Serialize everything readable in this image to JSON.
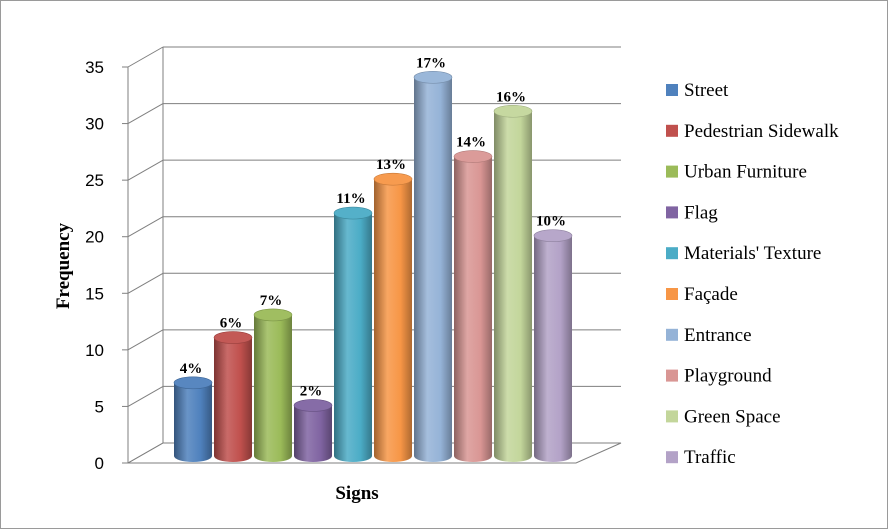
{
  "chart_data": {
    "type": "bar",
    "xlabel": "Signs",
    "ylabel": "Frequency",
    "ylim": [
      0,
      35
    ],
    "yticks": [
      0,
      5,
      10,
      15,
      20,
      25,
      30,
      35
    ],
    "grid": true,
    "legend_position": "right",
    "series": [
      {
        "name": "Street",
        "value": 7,
        "label": "4%",
        "color": "#4F81BD"
      },
      {
        "name": "Pedestrian Sidewalk",
        "value": 11,
        "label": "6%",
        "color": "#C0504D"
      },
      {
        "name": "Urban Furniture",
        "value": 13,
        "label": "7%",
        "color": "#9BBB59"
      },
      {
        "name": "Flag",
        "value": 5,
        "label": "2%",
        "color": "#8064A2"
      },
      {
        "name": "Materials' Texture",
        "value": 22,
        "label": "11%",
        "color": "#4BACC6"
      },
      {
        "name": "Façade",
        "value": 25,
        "label": "13%",
        "color": "#F79646"
      },
      {
        "name": "Entrance",
        "value": 34,
        "label": "17%",
        "color": "#95B3D7"
      },
      {
        "name": "Playground",
        "value": 27,
        "label": "14%",
        "color": "#D99694"
      },
      {
        "name": "Green Space",
        "value": 31,
        "label": "16%",
        "color": "#C3D69B"
      },
      {
        "name": "Traffic",
        "value": 20,
        "label": "10%",
        "color": "#B3A2C7"
      }
    ]
  }
}
